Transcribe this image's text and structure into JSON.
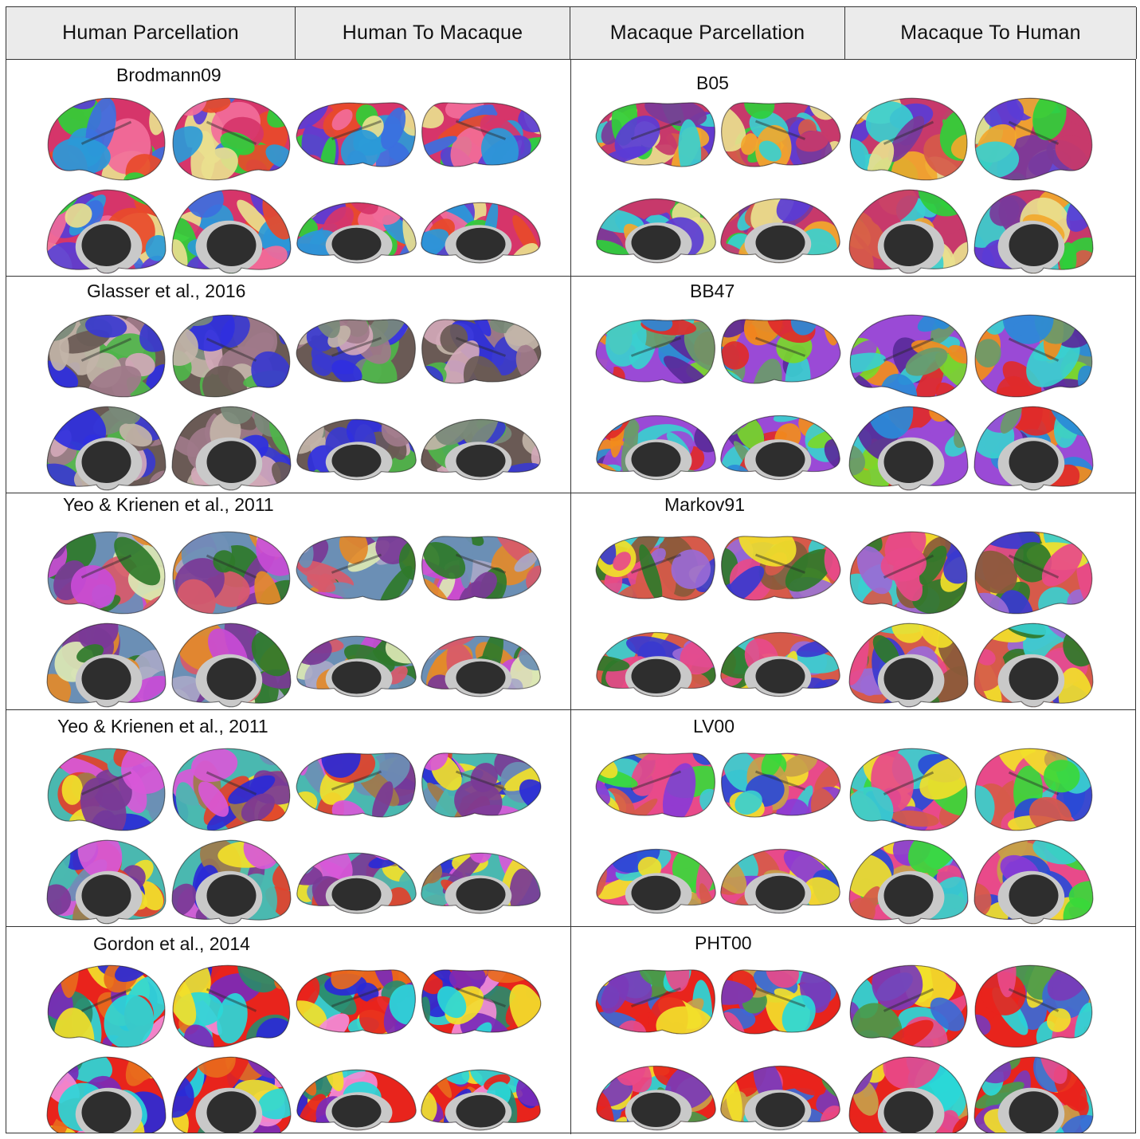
{
  "headers": [
    "Human Parcellation",
    "Human To Macaque",
    "Macaque Parcellation",
    "Macaque To Human"
  ],
  "rows": [
    {
      "human_atlas": "Brodmann09",
      "macaque_atlas": "B05",
      "human_colors": [
        "#d6356a",
        "#e84a2a",
        "#2fcf3a",
        "#e9df8e",
        "#5a3cd6",
        "#2a9ad8",
        "#f26c9a",
        "#3c6fe0"
      ],
      "macaque_colors": [
        "#c7396b",
        "#2fcf3a",
        "#e9df8e",
        "#5a3cd6",
        "#f2a82c",
        "#3acfcf",
        "#d65a4a",
        "#7a3a9a"
      ]
    },
    {
      "human_atlas": "Glasser et al., 2016",
      "macaque_atlas": "BB47",
      "human_colors": [
        "#6a5a55",
        "#4fb54a",
        "#a07a8a",
        "#3a3acf",
        "#c2b4a8",
        "#7a8a7a",
        "#d3a8b8",
        "#2f2fe0"
      ],
      "macaque_colors": [
        "#9a4ad6",
        "#f28c1c",
        "#3acfcf",
        "#6a9a6a",
        "#e02a2a",
        "#2a8ad8",
        "#7ad82a",
        "#5a2a9a"
      ]
    },
    {
      "human_atlas": "Yeo & Krienen et al., 2011",
      "macaque_atlas": "Markov91",
      "human_colors": [
        "#6b8fb5",
        "#e38a2a",
        "#c94bd6",
        "#7a3a96",
        "#d85a6a",
        "#2f7a2a",
        "#dce8b4",
        "#a8a8c8"
      ],
      "macaque_colors": [
        "#d65a4a",
        "#f2e02a",
        "#3a3acf",
        "#9a6ad6",
        "#2f7a2a",
        "#e84a8a",
        "#3acfcf",
        "#8a5a3a"
      ]
    },
    {
      "human_atlas": "Yeo & Krienen et al., 2011",
      "macaque_atlas": "LV00",
      "human_colors": [
        "#4ab8b0",
        "#e2402a",
        "#f2e02a",
        "#2a2ad6",
        "#d858d8",
        "#7a3a96",
        "#6b8fb5",
        "#a07a4a"
      ],
      "macaque_colors": [
        "#e84a8a",
        "#3ad83a",
        "#2a4ad6",
        "#f2e02a",
        "#d65a4a",
        "#3acfcf",
        "#c7a04a",
        "#8a3ad6"
      ]
    },
    {
      "human_atlas": "Gordon et al., 2014",
      "macaque_atlas": "PHT00",
      "human_colors": [
        "#e8241c",
        "#2a2ad6",
        "#7a2ab8",
        "#f2e02a",
        "#2ad8d8",
        "#e86a1c",
        "#2a8a6a",
        "#f28cd8"
      ],
      "macaque_colors": [
        "#e8241c",
        "#3a6ad6",
        "#f2e02a",
        "#2ad8d8",
        "#7a3ab8",
        "#e84a8a",
        "#4a9a4a",
        "#c7a04a"
      ]
    }
  ]
}
